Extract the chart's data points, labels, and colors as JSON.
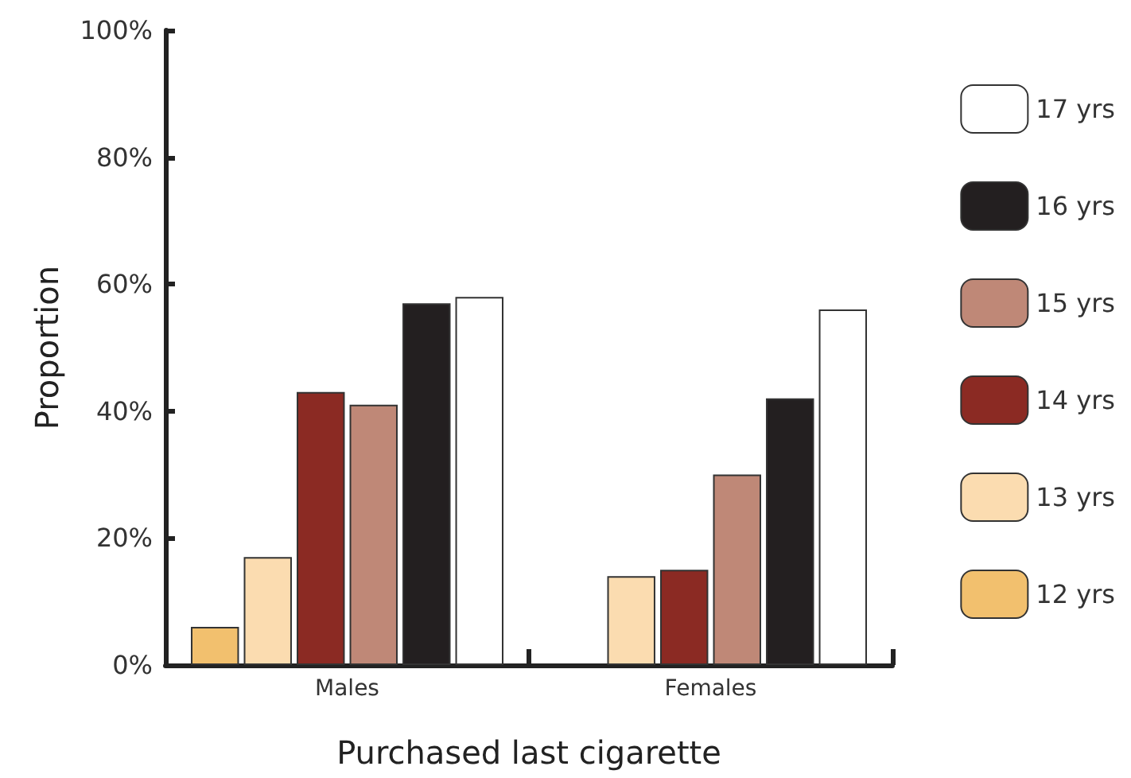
{
  "chart_data": {
    "type": "bar",
    "xlabel": "Purchased last cigarette",
    "ylabel": "Proportion",
    "categories": [
      "Males",
      "Females"
    ],
    "series": [
      {
        "name": "12 yrs",
        "color": "#f2c06e",
        "values": [
          6,
          null
        ]
      },
      {
        "name": "13 yrs",
        "color": "#fbdcb0",
        "values": [
          17,
          14
        ]
      },
      {
        "name": "14 yrs",
        "color": "#8b2a23",
        "values": [
          43,
          15
        ]
      },
      {
        "name": "15 yrs",
        "color": "#bf8877",
        "values": [
          41,
          30
        ]
      },
      {
        "name": "16 yrs",
        "color": "#231f20",
        "values": [
          57,
          42
        ]
      },
      {
        "name": "17 yrs",
        "color": "#ffffff",
        "values": [
          58,
          56
        ]
      }
    ],
    "ylim": [
      0,
      100
    ],
    "yticks": [
      {
        "value": 0,
        "label": "0%"
      },
      {
        "value": 20,
        "label": "20%"
      },
      {
        "value": 40,
        "label": "40%"
      },
      {
        "value": 60,
        "label": "60%"
      },
      {
        "value": 80,
        "label": "80%"
      },
      {
        "value": 100,
        "label": "100%"
      }
    ],
    "grid": false,
    "legend": "right"
  }
}
